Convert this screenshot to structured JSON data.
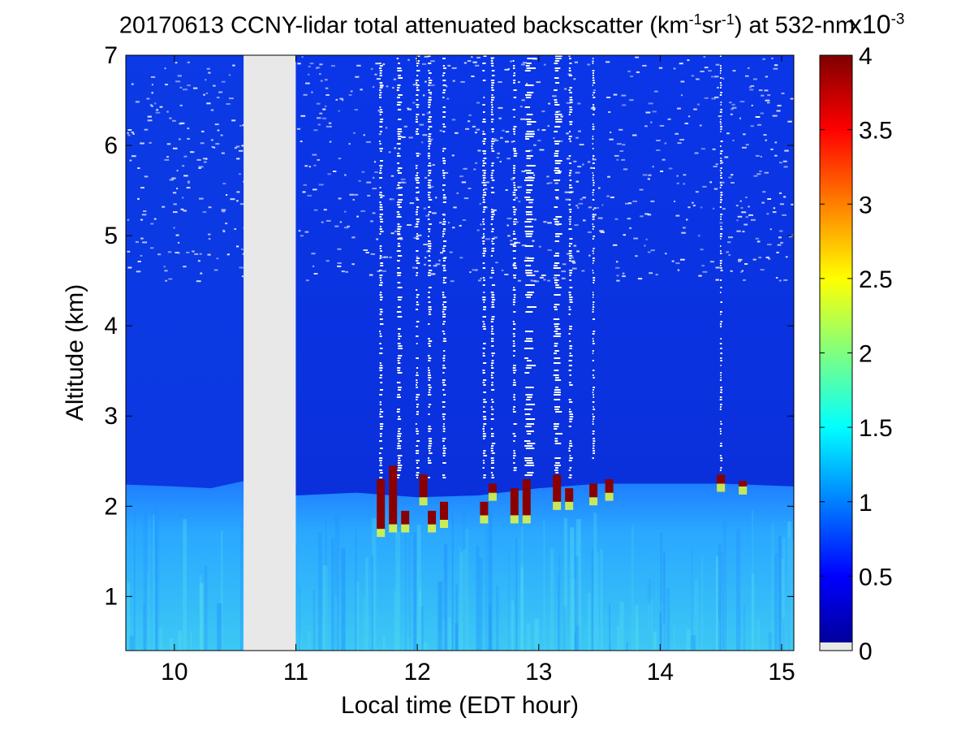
{
  "title": {
    "prefix": "20170613 CCNY-lidar total attenuated backscatter (km",
    "sup1": "-1",
    "mid": "sr",
    "sup2": "-1",
    "suffix": ") at 532-nm"
  },
  "colorbar": {
    "multiplier_base": "x10",
    "multiplier_exp": "-3",
    "ticks": [
      "0",
      "0.5",
      "1",
      "1.5",
      "2",
      "2.5",
      "3",
      "3.5",
      "4"
    ],
    "range": [
      0,
      4
    ],
    "colormap": "jet"
  },
  "chart_data": {
    "type": "heatmap",
    "xlabel": "Local time (EDT hour)",
    "ylabel": "Altitude (km)",
    "xlim": [
      9.6,
      15.1
    ],
    "ylim": [
      0.4,
      7
    ],
    "xticks": [
      "10",
      "11",
      "12",
      "13",
      "14",
      "15"
    ],
    "yticks": [
      "1",
      "2",
      "3",
      "4",
      "5",
      "6",
      "7"
    ],
    "data_gap": {
      "x_start": 10.57,
      "x_end": 11.0
    },
    "boundary_layer_top_km": [
      [
        9.6,
        2.24
      ],
      [
        10.0,
        2.22
      ],
      [
        10.3,
        2.2
      ],
      [
        10.57,
        2.28
      ],
      [
        11.0,
        2.12
      ],
      [
        11.5,
        2.15
      ],
      [
        12.0,
        2.1
      ],
      [
        12.5,
        2.12
      ],
      [
        13.0,
        2.2
      ],
      [
        13.5,
        2.25
      ],
      [
        14.0,
        2.25
      ],
      [
        14.5,
        2.25
      ],
      [
        15.1,
        2.22
      ]
    ],
    "cloud_columns": [
      {
        "x": 11.7,
        "base_km": 1.75,
        "top_km": 2.3
      },
      {
        "x": 11.8,
        "base_km": 1.8,
        "top_km": 2.45
      },
      {
        "x": 11.9,
        "base_km": 1.8,
        "top_km": 1.95
      },
      {
        "x": 12.05,
        "base_km": 2.1,
        "top_km": 2.35
      },
      {
        "x": 12.12,
        "base_km": 1.8,
        "top_km": 1.95
      },
      {
        "x": 12.22,
        "base_km": 1.85,
        "top_km": 2.05
      },
      {
        "x": 12.55,
        "base_km": 1.9,
        "top_km": 2.05
      },
      {
        "x": 12.62,
        "base_km": 2.15,
        "top_km": 2.25
      },
      {
        "x": 12.8,
        "base_km": 1.9,
        "top_km": 2.2
      },
      {
        "x": 12.9,
        "base_km": 1.9,
        "top_km": 2.3
      },
      {
        "x": 13.15,
        "base_km": 2.05,
        "top_km": 2.35
      },
      {
        "x": 13.25,
        "base_km": 2.05,
        "top_km": 2.2
      },
      {
        "x": 13.45,
        "base_km": 2.1,
        "top_km": 2.25
      },
      {
        "x": 13.58,
        "base_km": 2.15,
        "top_km": 2.3
      },
      {
        "x": 14.5,
        "base_km": 2.25,
        "top_km": 2.35
      },
      {
        "x": 14.68,
        "base_km": 2.22,
        "top_km": 2.28
      }
    ],
    "noisy_columns": [
      {
        "x": 11.7,
        "width": 0.03,
        "bottom_km": 2.3
      },
      {
        "x": 11.85,
        "width": 0.04,
        "bottom_km": 2.3
      },
      {
        "x": 12.0,
        "width": 0.03,
        "bottom_km": 2.3
      },
      {
        "x": 12.1,
        "width": 0.03,
        "bottom_km": 2.3
      },
      {
        "x": 12.22,
        "width": 0.03,
        "bottom_km": 2.3
      },
      {
        "x": 12.55,
        "width": 0.03,
        "bottom_km": 2.3
      },
      {
        "x": 12.62,
        "width": 0.03,
        "bottom_km": 2.3
      },
      {
        "x": 12.8,
        "width": 0.03,
        "bottom_km": 2.4
      },
      {
        "x": 12.92,
        "width": 0.08,
        "bottom_km": 2.3
      },
      {
        "x": 13.15,
        "width": 0.06,
        "bottom_km": 2.3
      },
      {
        "x": 13.26,
        "width": 0.03,
        "bottom_km": 2.3
      },
      {
        "x": 13.45,
        "width": 0.02,
        "bottom_km": 2.5
      },
      {
        "x": 14.5,
        "width": 0.02,
        "bottom_km": 2.4
      }
    ]
  }
}
